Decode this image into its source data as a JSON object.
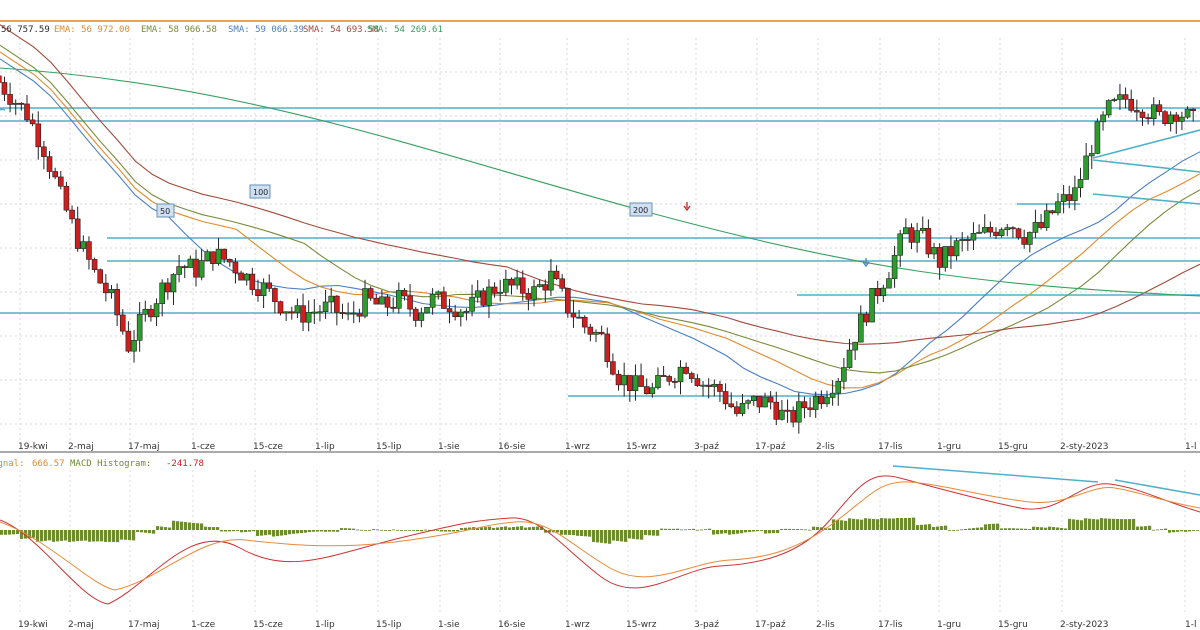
{
  "header": {
    "indicators": [
      {
        "text": "56 757.59",
        "color": "#2a2a2a"
      },
      {
        "text": "EMA: 56 972.00",
        "color": "#e08a2e"
      },
      {
        "text": "EMA: 58 966.58",
        "color": "#7a8a3a"
      },
      {
        "text": "SMA: 59 066.39",
        "color": "#4a7fc0"
      },
      {
        "text": "SMA: 54 693.58",
        "color": "#a04a3a"
      },
      {
        "text": "SMA: 54 269.61",
        "color": "#3aa060"
      }
    ]
  },
  "macd_header": {
    "signal_label": "ignal:",
    "signal_value": "666.57",
    "hist_label": "MACD Histogram:",
    "hist_value": "-241.78"
  },
  "ma_tags": [
    "50",
    "100",
    "200"
  ],
  "chart_data": {
    "type": "candlestick",
    "x_ticks": [
      "19-kwi",
      "2-maj",
      "17-maj",
      "1-cze",
      "15-cze",
      "1-lip",
      "15-lip",
      "1-sie",
      "16-sie",
      "1-wrz",
      "15-wrz",
      "3-paź",
      "17-paź",
      "2-lis",
      "17-lis",
      "1-gru",
      "15-gru",
      "2-sty-2023",
      "1-l"
    ],
    "close_path": [
      62.5,
      62.0,
      61.5,
      60.6,
      59.3,
      58.2,
      57.3,
      56.6,
      55.4,
      56.2,
      56.9,
      57.5,
      57.4,
      57.8,
      57.6,
      57.2,
      56.9,
      56.5,
      56.2,
      56.3,
      56.4,
      56.1,
      56.6,
      56.4,
      56.6,
      56.3,
      56.6,
      56.5,
      56.3,
      56.7,
      57.0,
      56.9,
      56.8,
      57.2,
      56.4,
      55.9,
      55.6,
      54.6,
      54.3,
      54.2,
      54.6,
      54.9,
      54.4,
      54.2,
      53.6,
      53.9,
      53.9,
      53.4,
      53.8,
      54.1,
      54.6,
      55.7,
      56.6,
      57.4,
      58.4,
      58.2,
      57.6,
      58.0,
      58.2,
      58.4,
      58.7,
      58.3,
      58.5,
      59.1,
      59.4,
      60.7,
      61.6,
      61.9,
      61.7,
      61.4,
      61.6,
      61.3
    ],
    "macd": {
      "histogram_last": -241.78,
      "signal_last": 666.57
    },
    "series": [
      {
        "name": "EMA",
        "value": 56972.0,
        "color": "#e08a2e"
      },
      {
        "name": "EMA",
        "value": 58966.58,
        "color": "#7a8a3a"
      },
      {
        "name": "SMA",
        "value": 59066.39,
        "color": "#4a7fc0"
      },
      {
        "name": "SMA",
        "value": 54693.58,
        "color": "#a04a3a"
      },
      {
        "name": "SMA",
        "value": 54269.61,
        "color": "#3aa060"
      }
    ],
    "colors": {
      "up": "#2e9b2e",
      "down": "#cc1f1f",
      "hline": "#4fb0c8",
      "macd": "#cc3333",
      "signal": "#e88a3a",
      "hist": "#6e8b2e"
    }
  }
}
